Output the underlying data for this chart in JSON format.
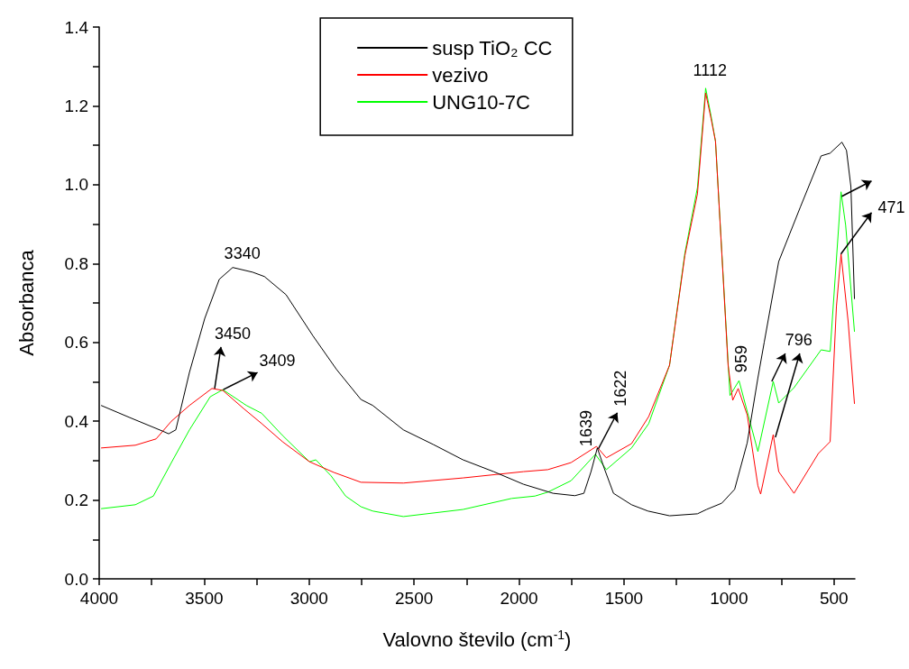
{
  "chart_data": {
    "type": "line",
    "xlabel": "Valovno število (cm$^{-1}$)",
    "ylabel": "Absorbanca",
    "xlim": [
      4000,
      400
    ],
    "ylim": [
      0,
      1.4
    ],
    "xticks": [
      4000,
      {
        "value": 3750,
        "label": null
      },
      3500,
      {
        "value": 3250,
        "label": null
      },
      3000,
      {
        "value": 2750,
        "label": null
      },
      2500,
      {
        "value": 2250,
        "label": null
      },
      2000,
      {
        "value": 1750,
        "label": null
      },
      1500,
      {
        "value": 1250,
        "label": null
      },
      1000,
      {
        "value": 750,
        "label": null
      },
      500
    ],
    "yticks": [
      {
        "value": 0,
        "label": "0.0"
      },
      {
        "value": 0.1,
        "label": null
      },
      0.2,
      {
        "value": 0.3,
        "label": null
      },
      0.4,
      {
        "value": 0.5,
        "label": null
      },
      0.6,
      {
        "value": 0.7,
        "label": null
      },
      0.8,
      {
        "value": 0.9,
        "label": null
      },
      {
        "value": 1,
        "label": "1.0"
      },
      {
        "value": 1.1,
        "label": null
      },
      1.2,
      {
        "value": 1.3,
        "label": null
      },
      1.4
    ],
    "legend": "top",
    "grid": false,
    "marker": "none",
    "line_style": "solid",
    "series": [
      {
        "name": "susp TiO₂ CC",
        "color": "#000000",
        "x": [
          3991,
          3858,
          3699,
          3669,
          3635,
          3570,
          3497,
          3428,
          3364,
          3269,
          3213,
          3110,
          2981,
          2869,
          2753,
          2697,
          2551,
          2409,
          2267,
          2121,
          1979,
          1838,
          1734,
          1691,
          1657,
          1627,
          1593,
          1550,
          1464,
          1386,
          1283,
          1150,
          1107,
          1034,
          973,
          913,
          862,
          832,
          763,
          660,
          561,
          518,
          462,
          440,
          419,
          402
        ],
        "values": [
          0.44,
          0.41,
          0.375,
          0.368,
          0.378,
          0.524,
          0.661,
          0.76,
          0.79,
          0.778,
          0.767,
          0.721,
          0.616,
          0.531,
          0.455,
          0.44,
          0.378,
          0.341,
          0.302,
          0.272,
          0.24,
          0.217,
          0.211,
          0.217,
          0.272,
          0.332,
          0.279,
          0.217,
          0.188,
          0.172,
          0.16,
          0.165,
          0.176,
          0.192,
          0.227,
          0.345,
          0.51,
          0.6,
          0.805,
          0.943,
          1.073,
          1.08,
          1.108,
          1.087,
          0.995,
          0.71
        ]
      },
      {
        "name": "vezivo",
        "color": "#ff0000",
        "x": [
          3991,
          3828,
          3729,
          3656,
          3570,
          3463,
          3411,
          3312,
          3226,
          3127,
          2998,
          2882,
          2753,
          2551,
          2267,
          1979,
          1863,
          1752,
          1631,
          1584,
          1464,
          1382,
          1283,
          1210,
          1150,
          1111,
          1085,
          1064,
          1004,
          982,
          956,
          913,
          862,
          849,
          789,
          763,
          690,
          574,
          518,
          488,
          466,
          432,
          402
        ],
        "values": [
          0.332,
          0.339,
          0.355,
          0.4,
          0.44,
          0.483,
          0.478,
          0.432,
          0.394,
          0.348,
          0.297,
          0.27,
          0.245,
          0.243,
          0.256,
          0.272,
          0.277,
          0.295,
          0.336,
          0.307,
          0.343,
          0.412,
          0.542,
          0.82,
          0.977,
          1.233,
          1.167,
          1.11,
          0.542,
          0.453,
          0.483,
          0.416,
          0.236,
          0.215,
          0.366,
          0.272,
          0.217,
          0.318,
          0.348,
          0.691,
          0.824,
          0.652,
          0.444
        ]
      },
      {
        "name": "UNG10-7C",
        "color": "#00ff00",
        "x": [
          3991,
          3828,
          3742,
          3656,
          3570,
          3471,
          3411,
          3299,
          3226,
          3127,
          2998,
          2968,
          2895,
          2826,
          2753,
          2697,
          2551,
          2267,
          2035,
          1924,
          1863,
          1752,
          1636,
          1584,
          1464,
          1382,
          1283,
          1210,
          1150,
          1111,
          1085,
          1064,
          995,
          952,
          862,
          789,
          763,
          690,
          561,
          518,
          466,
          444,
          402
        ],
        "values": [
          0.178,
          0.188,
          0.21,
          0.295,
          0.378,
          0.462,
          0.48,
          0.44,
          0.42,
          0.364,
          0.297,
          0.302,
          0.261,
          0.21,
          0.183,
          0.172,
          0.158,
          0.176,
          0.204,
          0.21,
          0.22,
          0.249,
          0.316,
          0.277,
          0.332,
          0.394,
          0.542,
          0.826,
          0.993,
          1.245,
          1.174,
          1.11,
          0.465,
          0.503,
          0.323,
          0.501,
          0.446,
          0.485,
          0.581,
          0.577,
          0.982,
          0.897,
          0.627
        ]
      }
    ],
    "annotations": [
      {
        "text": "3340",
        "x": 3340,
        "y": 0.79
      },
      {
        "text": "3450",
        "x": 3450,
        "y": 0.483
      },
      {
        "text": "3409",
        "x": 3409,
        "y": 0.48
      },
      {
        "text": "1639",
        "x": 1639,
        "y": 0.336
      },
      {
        "text": "1622",
        "x": 1622,
        "y": 0.33
      },
      {
        "text": "1112",
        "x": 1112,
        "y": 1.245
      },
      {
        "text": "959",
        "x": 959,
        "y": 0.503
      },
      {
        "text": "796",
        "x": 796,
        "y": 0.501
      },
      {
        "text": "471",
        "x": 471,
        "y": 0.982
      }
    ]
  }
}
